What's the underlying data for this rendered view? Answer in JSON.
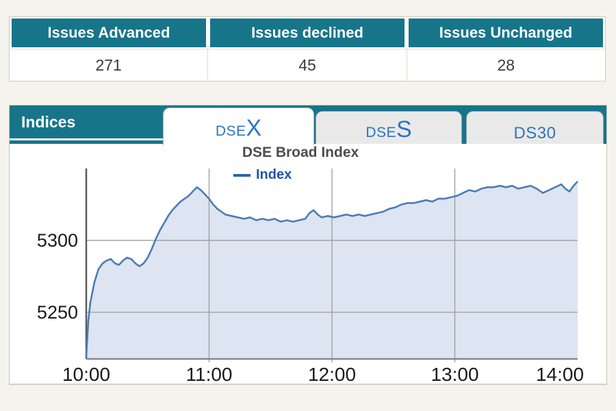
{
  "summary_table": {
    "headers": [
      "Issues Advanced",
      "Issues declined",
      "Issues Unchanged"
    ],
    "values": [
      "271",
      "45",
      "28"
    ]
  },
  "indices_panel": {
    "label": "Indices",
    "tabs": [
      {
        "id": "dsex",
        "prefix": "DSE",
        "suffix": "X",
        "active": true
      },
      {
        "id": "dses",
        "prefix": "DSE",
        "suffix": "S",
        "active": false
      },
      {
        "id": "ds30",
        "prefix": "DS30",
        "suffix": "",
        "active": false
      }
    ],
    "chart_title": "DSE Broad Index",
    "legend": {
      "label": "Index"
    }
  },
  "colors": {
    "teal": "#17758a",
    "tab_text": "#2e74c0",
    "legend_text": "#2155a3",
    "legend_dash": "#2f62ae",
    "line": "#4d7cb5",
    "fill": "#dce5f1",
    "grid": "#9c9c9c",
    "axis": "#666666"
  },
  "chart_data": {
    "type": "area",
    "title": "DSE Broad Index",
    "x_unit": "time-of-day-minutes",
    "xlim_minutes": [
      600,
      840
    ],
    "ylim": [
      5218,
      5350
    ],
    "y_ticks": [
      5250,
      5300
    ],
    "x_ticks": [
      {
        "t": 600,
        "label": "10:00"
      },
      {
        "t": 660,
        "label": "11:00"
      },
      {
        "t": 720,
        "label": "12:00"
      },
      {
        "t": 780,
        "label": "13:00"
      },
      {
        "t": 840,
        "label": "14:00"
      }
    ],
    "grid": true,
    "legend_position": "top",
    "series": [
      {
        "name": "Index",
        "points": [
          [
            600,
            5219
          ],
          [
            601,
            5244
          ],
          [
            602,
            5257
          ],
          [
            604,
            5271
          ],
          [
            606,
            5280
          ],
          [
            608,
            5284
          ],
          [
            610,
            5286
          ],
          [
            612,
            5287
          ],
          [
            614,
            5284
          ],
          [
            616,
            5283
          ],
          [
            618,
            5286
          ],
          [
            620,
            5288
          ],
          [
            622,
            5287
          ],
          [
            624,
            5284
          ],
          [
            626,
            5282
          ],
          [
            628,
            5284
          ],
          [
            630,
            5288
          ],
          [
            632,
            5294
          ],
          [
            634,
            5301
          ],
          [
            636,
            5307
          ],
          [
            638,
            5312
          ],
          [
            640,
            5317
          ],
          [
            642,
            5321
          ],
          [
            644,
            5324
          ],
          [
            646,
            5327
          ],
          [
            648,
            5329
          ],
          [
            650,
            5331
          ],
          [
            652,
            5334
          ],
          [
            654,
            5337
          ],
          [
            656,
            5335
          ],
          [
            658,
            5332
          ],
          [
            660,
            5329
          ],
          [
            662,
            5325
          ],
          [
            664,
            5322
          ],
          [
            666,
            5320
          ],
          [
            668,
            5318
          ],
          [
            671,
            5317
          ],
          [
            674,
            5316
          ],
          [
            677,
            5315
          ],
          [
            680,
            5316
          ],
          [
            683,
            5314
          ],
          [
            686,
            5315
          ],
          [
            689,
            5314
          ],
          [
            692,
            5315
          ],
          [
            695,
            5313
          ],
          [
            698,
            5314
          ],
          [
            701,
            5313
          ],
          [
            704,
            5314
          ],
          [
            707,
            5315
          ],
          [
            709,
            5319
          ],
          [
            711,
            5321
          ],
          [
            713,
            5318
          ],
          [
            715,
            5316
          ],
          [
            718,
            5317
          ],
          [
            721,
            5316
          ],
          [
            724,
            5317
          ],
          [
            727,
            5318
          ],
          [
            730,
            5317
          ],
          [
            733,
            5318
          ],
          [
            736,
            5317
          ],
          [
            739,
            5318
          ],
          [
            742,
            5319
          ],
          [
            745,
            5320
          ],
          [
            748,
            5322
          ],
          [
            751,
            5323
          ],
          [
            754,
            5325
          ],
          [
            757,
            5326
          ],
          [
            760,
            5326
          ],
          [
            763,
            5327
          ],
          [
            766,
            5328
          ],
          [
            769,
            5327
          ],
          [
            772,
            5329
          ],
          [
            775,
            5329
          ],
          [
            778,
            5330
          ],
          [
            781,
            5331
          ],
          [
            784,
            5333
          ],
          [
            787,
            5335
          ],
          [
            790,
            5334
          ],
          [
            793,
            5336
          ],
          [
            796,
            5337
          ],
          [
            799,
            5337
          ],
          [
            802,
            5338
          ],
          [
            805,
            5337
          ],
          [
            808,
            5338
          ],
          [
            811,
            5336
          ],
          [
            814,
            5337
          ],
          [
            817,
            5338
          ],
          [
            820,
            5336
          ],
          [
            823,
            5333
          ],
          [
            826,
            5335
          ],
          [
            829,
            5337
          ],
          [
            832,
            5339
          ],
          [
            834,
            5336
          ],
          [
            836,
            5334
          ],
          [
            838,
            5338
          ],
          [
            840,
            5341
          ]
        ]
      }
    ]
  }
}
